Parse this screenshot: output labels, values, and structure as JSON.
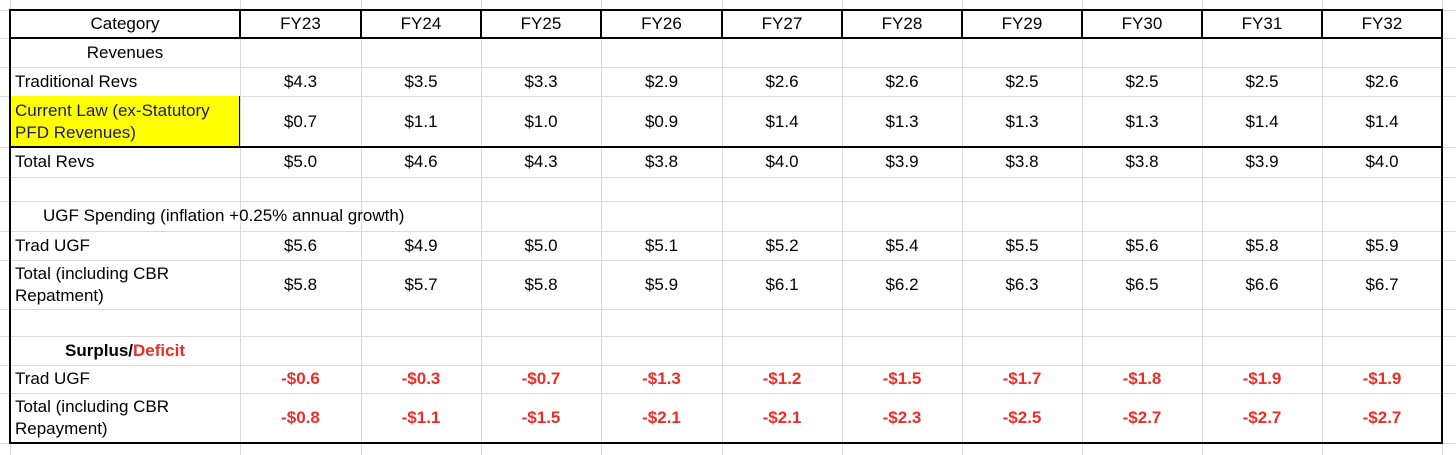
{
  "header": [
    "Category",
    "FY23",
    "FY24",
    "FY25",
    "FY26",
    "FY27",
    "FY28",
    "FY29",
    "FY30",
    "FY31",
    "FY32"
  ],
  "rows": [
    {
      "label": "Revenues"
    },
    {
      "label": "Traditional Revs",
      "values": [
        "$4.3",
        "$3.5",
        "$3.3",
        "$2.9",
        "$2.6",
        "$2.6",
        "$2.5",
        "$2.5",
        "$2.5",
        "$2.6"
      ]
    },
    {
      "label": "Current Law (ex-Statutory PFD Revenues)",
      "values": [
        "$0.7",
        "$1.1",
        "$1.0",
        "$0.9",
        "$1.4",
        "$1.3",
        "$1.3",
        "$1.3",
        "$1.4",
        "$1.4"
      ]
    },
    {
      "label": "Total Revs",
      "values": [
        "$5.0",
        "$4.6",
        "$4.3",
        "$3.8",
        "$4.0",
        "$3.9",
        "$3.8",
        "$3.8",
        "$3.9",
        "$4.0"
      ]
    },
    {
      "label": "UGF Spending (inflation +0.25% annual growth)"
    },
    {
      "label": "Trad UGF",
      "values": [
        "$5.6",
        "$4.9",
        "$5.0",
        "$5.1",
        "$5.2",
        "$5.4",
        "$5.5",
        "$5.6",
        "$5.8",
        "$5.9"
      ]
    },
    {
      "label": "Total (including CBR Repatment)",
      "values": [
        "$5.8",
        "$5.7",
        "$5.8",
        "$5.9",
        "$6.1",
        "$6.2",
        "$6.3",
        "$6.5",
        "$6.6",
        "$6.7"
      ]
    },
    {
      "label_parts": [
        "Surplus",
        "/",
        "Deficit"
      ]
    },
    {
      "label": "Trad UGF",
      "values": [
        "-$0.6",
        "-$0.3",
        "-$0.7",
        "-$1.3",
        "-$1.2",
        "-$1.5",
        "-$1.7",
        "-$1.8",
        "-$1.9",
        "-$1.9"
      ]
    },
    {
      "label": "Total (including CBR Repayment)",
      "values": [
        "-$0.8",
        "-$1.1",
        "-$1.5",
        "-$2.1",
        "-$2.1",
        "-$2.3",
        "-$2.5",
        "-$2.7",
        "-$2.7",
        "-$2.7"
      ]
    }
  ]
}
